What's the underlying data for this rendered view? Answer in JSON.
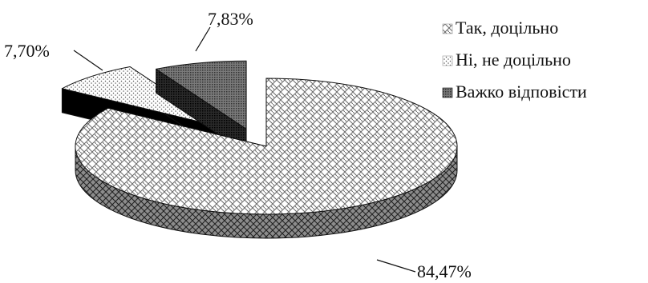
{
  "chart_data": {
    "type": "pie",
    "three_d": true,
    "exploded": true,
    "legend_position": "right",
    "slices": [
      {
        "name": "Так, доцільно",
        "value": 84.47,
        "label": "84,47%",
        "pattern": "weave"
      },
      {
        "name": "Ні, не доцільно",
        "value": 7.7,
        "label": "7,70%",
        "pattern": "dots"
      },
      {
        "name": "Важко відповісти",
        "value": 7.83,
        "label": "7,83%",
        "pattern": "dense"
      }
    ]
  }
}
